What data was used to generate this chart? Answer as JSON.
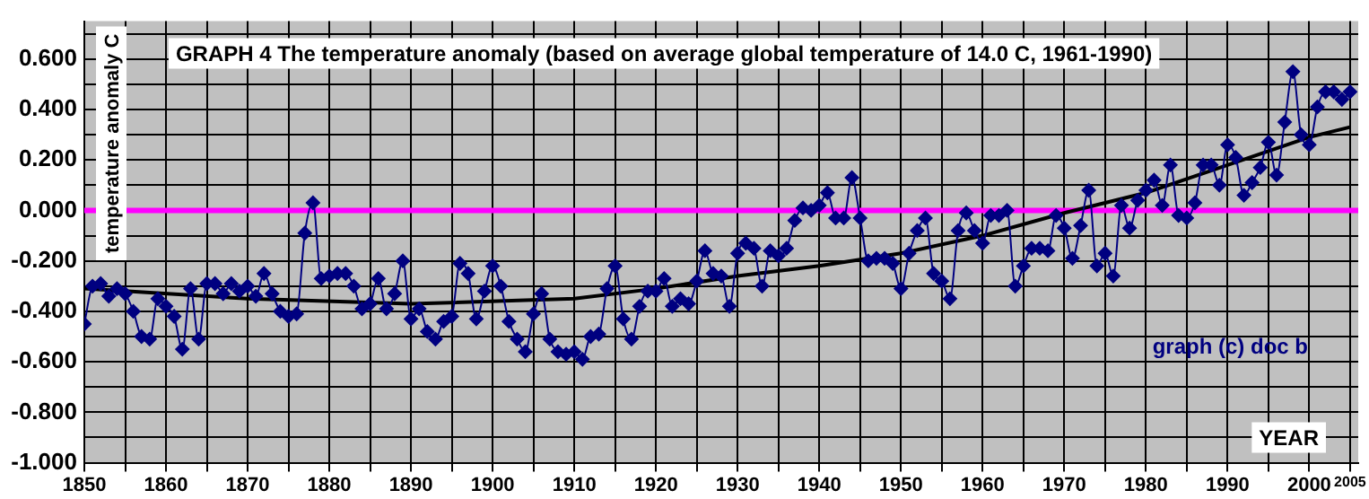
{
  "chart_data": {
    "type": "line",
    "title": "GRAPH 4 The temperature anomaly (based on average global temperature of 14.0 C, 1961-1990)",
    "xlabel": "YEAR",
    "ylabel": "temperature anomaly C",
    "annotations": [
      "graph (c) doc b"
    ],
    "x": [
      1850,
      1851,
      1852,
      1853,
      1854,
      1855,
      1856,
      1857,
      1858,
      1859,
      1860,
      1861,
      1862,
      1863,
      1864,
      1865,
      1866,
      1867,
      1868,
      1869,
      1870,
      1871,
      1872,
      1873,
      1874,
      1875,
      1876,
      1877,
      1878,
      1879,
      1880,
      1881,
      1882,
      1883,
      1884,
      1885,
      1886,
      1887,
      1888,
      1889,
      1890,
      1891,
      1892,
      1893,
      1894,
      1895,
      1896,
      1897,
      1898,
      1899,
      1900,
      1901,
      1902,
      1903,
      1904,
      1905,
      1906,
      1907,
      1908,
      1909,
      1910,
      1911,
      1912,
      1913,
      1914,
      1915,
      1916,
      1917,
      1918,
      1919,
      1920,
      1921,
      1922,
      1923,
      1924,
      1925,
      1926,
      1927,
      1928,
      1929,
      1930,
      1931,
      1932,
      1933,
      1934,
      1935,
      1936,
      1937,
      1938,
      1939,
      1940,
      1941,
      1942,
      1943,
      1944,
      1945,
      1946,
      1947,
      1948,
      1949,
      1950,
      1951,
      1952,
      1953,
      1954,
      1955,
      1956,
      1957,
      1958,
      1959,
      1960,
      1961,
      1962,
      1963,
      1964,
      1965,
      1966,
      1967,
      1968,
      1969,
      1970,
      1971,
      1972,
      1973,
      1974,
      1975,
      1976,
      1977,
      1978,
      1979,
      1980,
      1981,
      1982,
      1983,
      1984,
      1985,
      1986,
      1987,
      1988,
      1989,
      1990,
      1991,
      1992,
      1993,
      1994,
      1995,
      1996,
      1997,
      1998,
      1999,
      2000,
      2001,
      2002,
      2003,
      2004,
      2005
    ],
    "series": [
      {
        "color": "#000080",
        "marker": "diamond",
        "values": [
          -0.45,
          -0.3,
          -0.29,
          -0.34,
          -0.31,
          -0.33,
          -0.4,
          -0.5,
          -0.51,
          -0.35,
          -0.38,
          -0.42,
          -0.55,
          -0.31,
          -0.51,
          -0.29,
          -0.29,
          -0.33,
          -0.29,
          -0.32,
          -0.3,
          -0.34,
          -0.25,
          -0.33,
          -0.4,
          -0.42,
          -0.41,
          -0.09,
          0.03,
          -0.27,
          -0.26,
          -0.25,
          -0.25,
          -0.3,
          -0.39,
          -0.37,
          -0.27,
          -0.39,
          -0.33,
          -0.2,
          -0.43,
          -0.39,
          -0.48,
          -0.51,
          -0.44,
          -0.42,
          -0.21,
          -0.25,
          -0.43,
          -0.32,
          -0.22,
          -0.3,
          -0.44,
          -0.51,
          -0.56,
          -0.41,
          -0.33,
          -0.51,
          -0.56,
          -0.57,
          -0.56,
          -0.59,
          -0.5,
          -0.49,
          -0.31,
          -0.22,
          -0.43,
          -0.51,
          -0.38,
          -0.32,
          -0.32,
          -0.27,
          -0.38,
          -0.35,
          -0.37,
          -0.28,
          -0.16,
          -0.25,
          -0.26,
          -0.38,
          -0.17,
          -0.13,
          -0.15,
          -0.3,
          -0.16,
          -0.18,
          -0.15,
          -0.04,
          0.01,
          0.0,
          0.02,
          0.07,
          -0.03,
          -0.03,
          0.13,
          -0.03,
          -0.2,
          -0.19,
          -0.19,
          -0.21,
          -0.31,
          -0.17,
          -0.08,
          -0.03,
          -0.25,
          -0.28,
          -0.35,
          -0.08,
          -0.01,
          -0.08,
          -0.13,
          -0.02,
          -0.02,
          0.0,
          -0.3,
          -0.22,
          -0.15,
          -0.15,
          -0.16,
          -0.02,
          -0.07,
          -0.19,
          -0.06,
          0.08,
          -0.22,
          -0.17,
          -0.26,
          0.02,
          -0.07,
          0.04,
          0.08,
          0.12,
          0.02,
          0.18,
          -0.02,
          -0.03,
          0.03,
          0.18,
          0.18,
          0.1,
          0.26,
          0.21,
          0.06,
          0.11,
          0.17,
          0.27,
          0.14,
          0.35,
          0.55,
          0.3,
          0.26,
          0.41,
          0.47,
          0.47,
          0.44,
          0.47
        ]
      },
      {
        "type": "line",
        "color": "#000000",
        "marker": "none",
        "x": [
          1850,
          1870,
          1890,
          1910,
          1920,
          1930,
          1940,
          1950,
          1960,
          1970,
          1980,
          1990,
          2000,
          2005
        ],
        "values": [
          -0.31,
          -0.35,
          -0.37,
          -0.35,
          -0.31,
          -0.26,
          -0.22,
          -0.17,
          -0.1,
          -0.01,
          0.07,
          0.18,
          0.29,
          0.33
        ]
      }
    ],
    "xlim": [
      1850,
      2006
    ],
    "xticks": [
      1850,
      {
        "value": 1855,
        "label": null
      },
      1860,
      {
        "value": 1865,
        "label": null
      },
      1870,
      {
        "value": 1875,
        "label": null
      },
      1880,
      {
        "value": 1885,
        "label": null
      },
      1890,
      {
        "value": 1895,
        "label": null
      },
      1900,
      {
        "value": 1905,
        "label": null
      },
      1910,
      {
        "value": 1915,
        "label": null
      },
      1920,
      {
        "value": 1925,
        "label": null
      },
      1930,
      {
        "value": 1935,
        "label": null
      },
      1940,
      {
        "value": 1945,
        "label": null
      },
      1950,
      {
        "value": 1955,
        "label": null
      },
      1960,
      {
        "value": 1965,
        "label": null
      },
      1970,
      {
        "value": 1975,
        "label": null
      },
      1980,
      {
        "value": 1985,
        "label": null
      },
      1990,
      {
        "value": 1995,
        "label": null
      },
      2000,
      2005
    ],
    "ylim": [
      -1,
      0.75
    ],
    "yticks": [
      {
        "value": -1,
        "label": "-1.000"
      },
      {
        "value": -0.9,
        "label": null
      },
      {
        "value": -0.8,
        "label": "-0.800"
      },
      {
        "value": -0.7,
        "label": null
      },
      {
        "value": -0.6,
        "label": "-0.600"
      },
      {
        "value": -0.5,
        "label": null
      },
      {
        "value": -0.4,
        "label": "-0.400"
      },
      {
        "value": -0.3,
        "label": null
      },
      {
        "value": -0.2,
        "label": "-0.200"
      },
      {
        "value": -0.1,
        "label": null
      },
      {
        "value": 0,
        "label": "0.000"
      },
      {
        "value": 0.1,
        "label": null
      },
      {
        "value": 0.2,
        "label": "0.200"
      },
      {
        "value": 0.3,
        "label": null
      },
      {
        "value": 0.4,
        "label": "0.400"
      },
      {
        "value": 0.5,
        "label": null
      },
      {
        "value": 0.6,
        "label": "0.600"
      },
      {
        "value": 0.7,
        "label": null
      }
    ],
    "ref_lines": [
      {
        "axis": "y",
        "value": 0,
        "color": "#ff00ff"
      }
    ],
    "grid": true,
    "line_style": "solid"
  }
}
